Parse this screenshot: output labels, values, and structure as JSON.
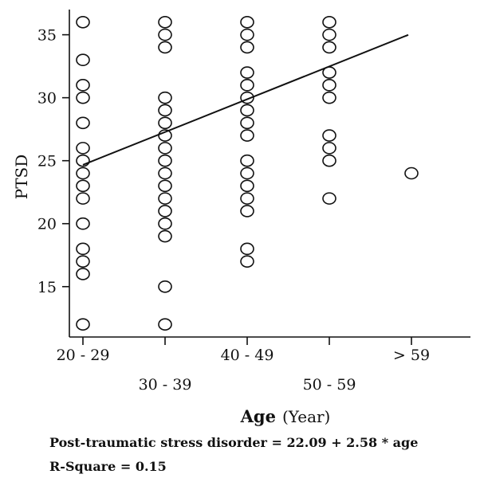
{
  "chart_data": {
    "type": "scatter",
    "title": "",
    "ylabel": "PTSD",
    "xlabel": {
      "main": "Age",
      "unit": "(Year)"
    },
    "categories": [
      "20 - 29",
      "30 - 39",
      "40 - 49",
      "50 - 59",
      "> 59"
    ],
    "ylim": [
      11,
      37
    ],
    "yticks": [
      15,
      20,
      25,
      30,
      35
    ],
    "grid": false,
    "legend": "none",
    "points": [
      {
        "x": "20 - 29",
        "y": [
          36,
          33,
          31,
          30,
          28,
          26,
          25,
          24,
          23,
          22,
          20,
          18,
          17,
          16,
          12
        ]
      },
      {
        "x": "30 - 39",
        "y": [
          36,
          35,
          34,
          30,
          29,
          28,
          27,
          26,
          25,
          24,
          23,
          22,
          21,
          20,
          19,
          15,
          12
        ]
      },
      {
        "x": "40 - 49",
        "y": [
          36,
          35,
          34,
          32,
          31,
          30,
          29,
          28,
          27,
          25,
          24,
          23,
          22,
          21,
          18,
          17
        ]
      },
      {
        "x": "50 - 59",
        "y": [
          36,
          35,
          34,
          32,
          31,
          30,
          27,
          26,
          25,
          22
        ]
      },
      {
        "x": "> 59",
        "y": [
          24
        ]
      }
    ],
    "regression": {
      "intercept": 22.09,
      "slope": 2.58,
      "from_category_index": 0,
      "to_category_index": 4
    }
  },
  "caption": {
    "equation": "Post-traumatic stress disorder = 22.09 + 2.58 * age",
    "r_square": "R-Square = 0.15"
  },
  "colors": {
    "ink": "#111111",
    "background": "#ffffff"
  }
}
